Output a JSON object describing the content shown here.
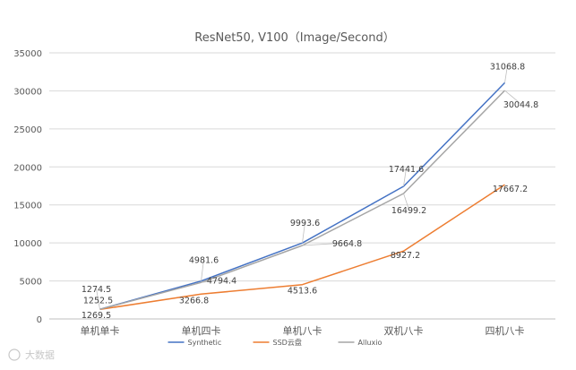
{
  "chart_data": {
    "type": "line",
    "title": "ResNet50, V100（Image/Second）",
    "xlabel": "",
    "ylabel": "",
    "categories": [
      "单机单卡",
      "单机四卡",
      "单机八卡",
      "双机八卡",
      "四机八卡"
    ],
    "ylim": [
      0,
      35000
    ],
    "yticks": [
      0,
      5000,
      10000,
      15000,
      20000,
      25000,
      30000,
      35000
    ],
    "grid": true,
    "legend_position": "bottom",
    "series": [
      {
        "name": "Synthetic",
        "color": "#4472c4",
        "values": [
          1274.5,
          4981.6,
          9993.6,
          17441.6,
          31068.8
        ],
        "labels": [
          "1274.5",
          "4981.6",
          "9993.6",
          "17441.6",
          "31068.8"
        ]
      },
      {
        "name": "SSD云盘",
        "color": "#ed7d31",
        "values": [
          1252.5,
          3266.8,
          4513.6,
          8927.2,
          17667.2
        ],
        "labels": [
          "1252.5",
          "3266.8",
          "4513.6",
          "8927.2",
          "17667.2"
        ]
      },
      {
        "name": "Alluxio",
        "color": "#a5a5a5",
        "values": [
          1269.5,
          4794.4,
          9664.8,
          16499.2,
          30044.8
        ],
        "labels": [
          "1269.5",
          "4794.4",
          "9664.8",
          "16499.2",
          "30044.8"
        ]
      }
    ]
  },
  "watermark": "大数据"
}
